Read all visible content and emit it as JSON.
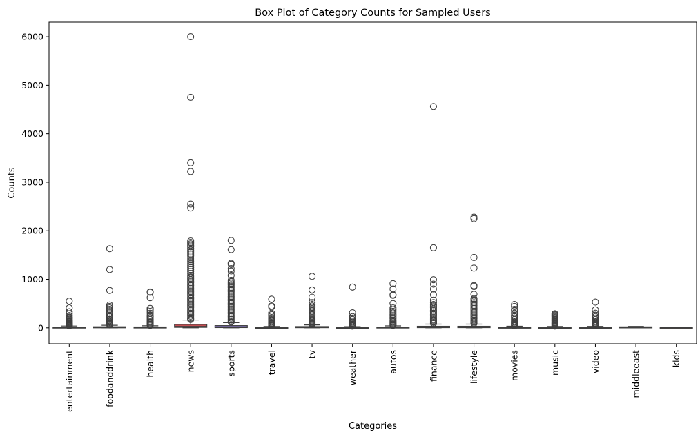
{
  "chart_data": {
    "type": "box",
    "title": "Box Plot of Category Counts for Sampled Users",
    "xlabel": "Categories",
    "ylabel": "Counts",
    "ylim": [
      -330,
      6300
    ],
    "yticks": [
      0,
      1000,
      2000,
      3000,
      4000,
      5000,
      6000
    ],
    "grid": false,
    "categories": [
      "entertainment",
      "foodanddrink",
      "health",
      "news",
      "sports",
      "travel",
      "tv",
      "weather",
      "autos",
      "finance",
      "lifestyle",
      "movies",
      "music",
      "video",
      "middleeast",
      "kids"
    ],
    "colors": [
      "#4c72b0",
      "#dd8452",
      "#55a868",
      "#c44e52",
      "#8172b3",
      "#937860",
      "#da8bc3",
      "#8c8c8c",
      "#ccb974",
      "#64b5cd",
      "#4c72b0",
      "#dd8452",
      "#55a868",
      "#c44e52",
      "#8172b3",
      "#937860"
    ],
    "boxes": [
      {
        "category": "entertainment",
        "q1": 2,
        "median": 6,
        "q3": 16,
        "whisker_low": 0,
        "whisker_high": 37,
        "outliers": [
          550,
          410,
          330,
          290,
          250,
          220,
          200,
          180,
          160,
          145,
          130,
          115,
          100,
          90,
          80,
          70,
          60,
          50,
          45,
          40
        ]
      },
      {
        "category": "foodanddrink",
        "q1": 3,
        "median": 9,
        "q3": 22,
        "whisker_low": 0,
        "whisker_high": 52,
        "outliers": [
          1630,
          1200,
          770,
          470,
          440,
          410,
          380,
          350,
          320,
          290,
          260,
          230,
          200,
          170,
          150,
          130,
          110,
          90,
          75,
          60
        ]
      },
      {
        "category": "health",
        "q1": 2,
        "median": 7,
        "q3": 18,
        "whisker_low": 0,
        "whisker_high": 42,
        "outliers": [
          740,
          730,
          620,
          400,
          370,
          340,
          300,
          260,
          230,
          200,
          170,
          140,
          120,
          100,
          80,
          65,
          50
        ]
      },
      {
        "category": "news",
        "q1": 10,
        "median": 30,
        "q3": 70,
        "whisker_low": 0,
        "whisker_high": 160,
        "outliers": [
          6000,
          4750,
          3400,
          3220,
          2550,
          2470,
          1790,
          1760,
          1730,
          1700,
          1670,
          1640,
          1600,
          1560,
          1520,
          1480,
          1440,
          1400,
          1360,
          1320,
          1280,
          1240,
          1200,
          1160,
          1120,
          1080,
          1050,
          1020,
          990,
          960,
          930,
          900,
          870,
          840,
          810,
          780,
          750,
          720,
          690,
          660,
          630,
          600,
          570,
          540,
          510,
          480,
          450,
          420,
          390,
          360,
          330,
          300,
          270,
          240,
          210,
          190,
          170
        ]
      },
      {
        "category": "sports",
        "q1": 5,
        "median": 15,
        "q3": 45,
        "whisker_low": 0,
        "whisker_high": 105,
        "outliers": [
          1800,
          1610,
          1330,
          1310,
          1220,
          1170,
          1080,
          980,
          950,
          920,
          890,
          860,
          830,
          800,
          770,
          740,
          710,
          680,
          650,
          620,
          590,
          560,
          530,
          500,
          470,
          440,
          410,
          380,
          350,
          320,
          290,
          260,
          230,
          200,
          170,
          140,
          120
        ]
      },
      {
        "category": "travel",
        "q1": 1,
        "median": 4,
        "q3": 12,
        "whisker_low": 0,
        "whisker_high": 28,
        "outliers": [
          590,
          450,
          430,
          300,
          270,
          240,
          210,
          180,
          160,
          140,
          120,
          100,
          85,
          70,
          55,
          40
        ]
      },
      {
        "category": "tv",
        "q1": 3,
        "median": 10,
        "q3": 26,
        "whisker_low": 0,
        "whisker_high": 60,
        "outliers": [
          1060,
          780,
          630,
          520,
          480,
          450,
          420,
          390,
          360,
          330,
          300,
          270,
          240,
          210,
          180,
          160,
          140,
          120,
          100,
          85,
          70
        ]
      },
      {
        "category": "weather",
        "q1": 1,
        "median": 3,
        "q3": 10,
        "whisker_low": 0,
        "whisker_high": 24,
        "outliers": [
          840,
          310,
          230,
          200,
          170,
          140,
          120,
          100,
          80,
          65,
          50,
          35
        ]
      },
      {
        "category": "autos",
        "q1": 2,
        "median": 6,
        "q3": 17,
        "whisker_low": 0,
        "whisker_high": 40,
        "outliers": [
          910,
          800,
          680,
          670,
          500,
          410,
          370,
          340,
          310,
          280,
          250,
          220,
          190,
          160,
          140,
          120,
          100,
          80,
          65,
          50
        ]
      },
      {
        "category": "finance",
        "q1": 4,
        "median": 12,
        "q3": 32,
        "whisker_low": 0,
        "whisker_high": 75,
        "outliers": [
          4560,
          1650,
          990,
          900,
          800,
          680,
          570,
          520,
          480,
          450,
          420,
          390,
          360,
          330,
          300,
          270,
          240,
          210,
          180,
          160,
          140,
          120,
          100,
          90
        ]
      },
      {
        "category": "lifestyle",
        "q1": 4,
        "median": 12,
        "q3": 32,
        "whisker_low": 0,
        "whisker_high": 75,
        "outliers": [
          2280,
          2250,
          1450,
          1230,
          870,
          850,
          690,
          600,
          580,
          550,
          520,
          490,
          460,
          430,
          400,
          370,
          340,
          310,
          280,
          250,
          220,
          190,
          160,
          140,
          120,
          100,
          90
        ]
      },
      {
        "category": "movies",
        "q1": 1,
        "median": 5,
        "q3": 14,
        "whisker_low": 0,
        "whisker_high": 33,
        "outliers": [
          480,
          440,
          380,
          350,
          300,
          260,
          230,
          200,
          170,
          140,
          120,
          100,
          85,
          70,
          55,
          40
        ]
      },
      {
        "category": "music",
        "q1": 1,
        "median": 4,
        "q3": 12,
        "whisker_low": 0,
        "whisker_high": 28,
        "outliers": [
          290,
          270,
          250,
          230,
          210,
          190,
          170,
          150,
          130,
          110,
          95,
          80,
          65,
          50,
          35
        ]
      },
      {
        "category": "video",
        "q1": 1,
        "median": 4,
        "q3": 13,
        "whisker_low": 0,
        "whisker_high": 30,
        "outliers": [
          530,
          370,
          300,
          260,
          230,
          200,
          170,
          140,
          120,
          100,
          85,
          70,
          55,
          40
        ]
      },
      {
        "category": "middleeast",
        "q1": 5,
        "median": 10,
        "q3": 20,
        "whisker_low": 0,
        "whisker_high": 30,
        "outliers": []
      },
      {
        "category": "kids",
        "q1": 0,
        "median": 1,
        "q3": 3,
        "whisker_low": 0,
        "whisker_high": 6,
        "outliers": []
      }
    ]
  }
}
